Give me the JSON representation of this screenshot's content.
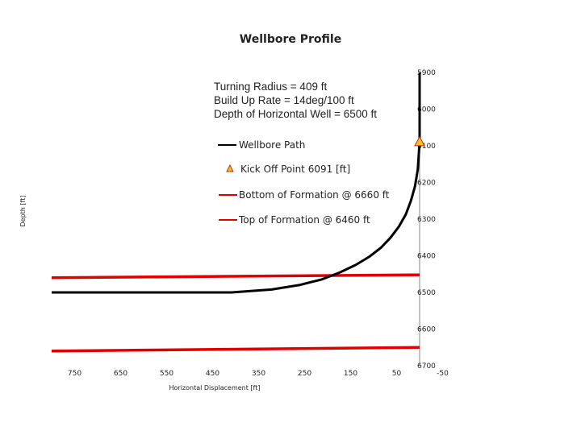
{
  "chart_data": {
    "type": "line",
    "title": "Wellbore Profile",
    "xlabel": "Horizontal Displacement [ft]",
    "ylabel": "Depth [ft]",
    "xlim": [
      800,
      -50
    ],
    "ylim": [
      5900,
      6700
    ],
    "x_reversed": true,
    "y_reversed": true,
    "x_ticks": [
      "750",
      "650",
      "550",
      "450",
      "350",
      "250",
      "150",
      "50",
      "-50"
    ],
    "y_ticks": [
      "5900",
      "6000",
      "6100",
      "6200",
      "6300",
      "6400",
      "6500",
      "6600",
      "6700"
    ],
    "grid": false,
    "legend_position": "center-right",
    "annotation_lines": [
      "Turning Radius = 409 ft",
      "Build Up Rate = 14deg/100 ft",
      "Depth of  Horizontal Well = 6500 ft"
    ],
    "series": [
      {
        "name": "Wellbore Path",
        "color": "#000000",
        "style": "line",
        "x": [
          0,
          0,
          4,
          10,
          19,
          30,
          45,
          63,
          84,
          110,
          139,
          174,
          214,
          262,
          322,
          409,
          800
        ],
        "y": [
          5900,
          6091,
          6165,
          6210,
          6250,
          6287,
          6320,
          6350,
          6378,
          6403,
          6425,
          6446,
          6465,
          6480,
          6492,
          6500,
          6500
        ]
      },
      {
        "name": "Kick Off Point 6091 [ft]",
        "color": "#f5c020",
        "style": "triangle-marker",
        "x": [
          0
        ],
        "y": [
          6091
        ]
      },
      {
        "name": "Bottom of Formation @ 6660 ft",
        "color": "#e00000",
        "style": "line",
        "x": [
          800,
          0
        ],
        "y": [
          6660,
          6650
        ]
      },
      {
        "name": "Top of Formation @ 6460 ft",
        "color": "#e00000",
        "style": "line",
        "x": [
          800,
          0
        ],
        "y": [
          6460,
          6452
        ]
      }
    ]
  }
}
